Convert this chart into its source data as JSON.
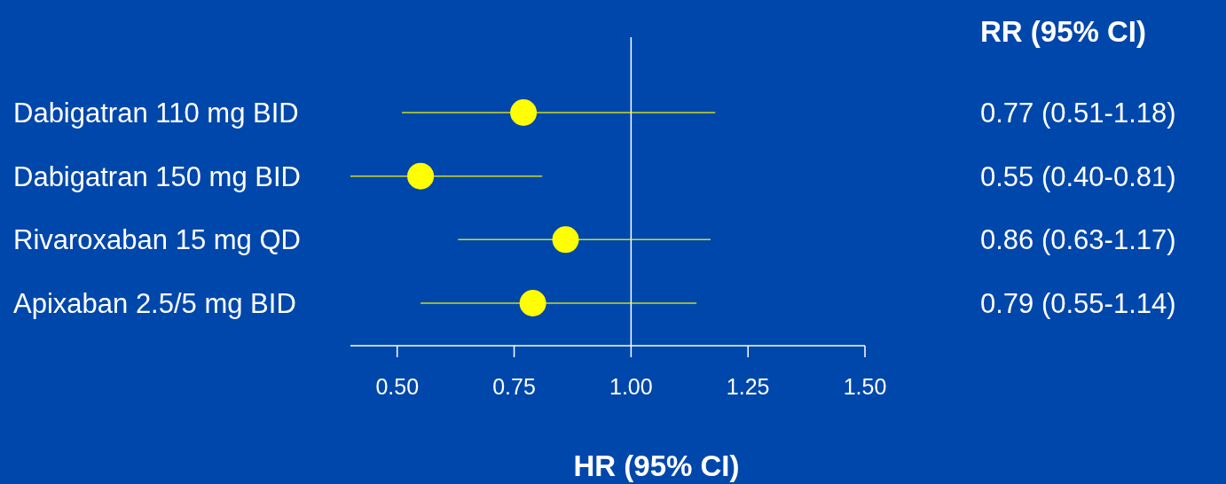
{
  "chart_data": {
    "type": "scatter",
    "orientation": "horizontal",
    "xlabel": "HR (95% CI)",
    "annotations": [
      "RR (95% CI)"
    ],
    "categories": [
      "Dabigatran 110 mg BID",
      "Dabigatran 150 mg BID",
      "Rivaroxaban 15 mg QD",
      "Apixaban 2.5/5 mg BID"
    ],
    "values": [
      0.77,
      0.55,
      0.86,
      0.79
    ],
    "errors": [
      [
        0.51,
        1.18
      ],
      [
        0.4,
        0.81
      ],
      [
        0.63,
        1.17
      ],
      [
        0.55,
        1.14
      ]
    ],
    "value_labels": [
      "0.77 (0.51-1.18)",
      "0.55 (0.40-0.81)",
      "0.86 (0.63-1.17)",
      "0.79 (0.55-1.14)"
    ],
    "color": "#ffff00",
    "marker": "circle",
    "xlim": [
      0.4,
      1.5
    ],
    "xticks": [
      {
        "value": 0.5,
        "label": "0.50"
      },
      0.75,
      {
        "value": 1.0,
        "label": "1.00"
      },
      1.25,
      {
        "value": 1.5,
        "label": "1.50"
      }
    ],
    "ref_lines": [
      {
        "axis": "x",
        "value": 1.0,
        "label": null,
        "color": "#ffffff"
      }
    ]
  }
}
